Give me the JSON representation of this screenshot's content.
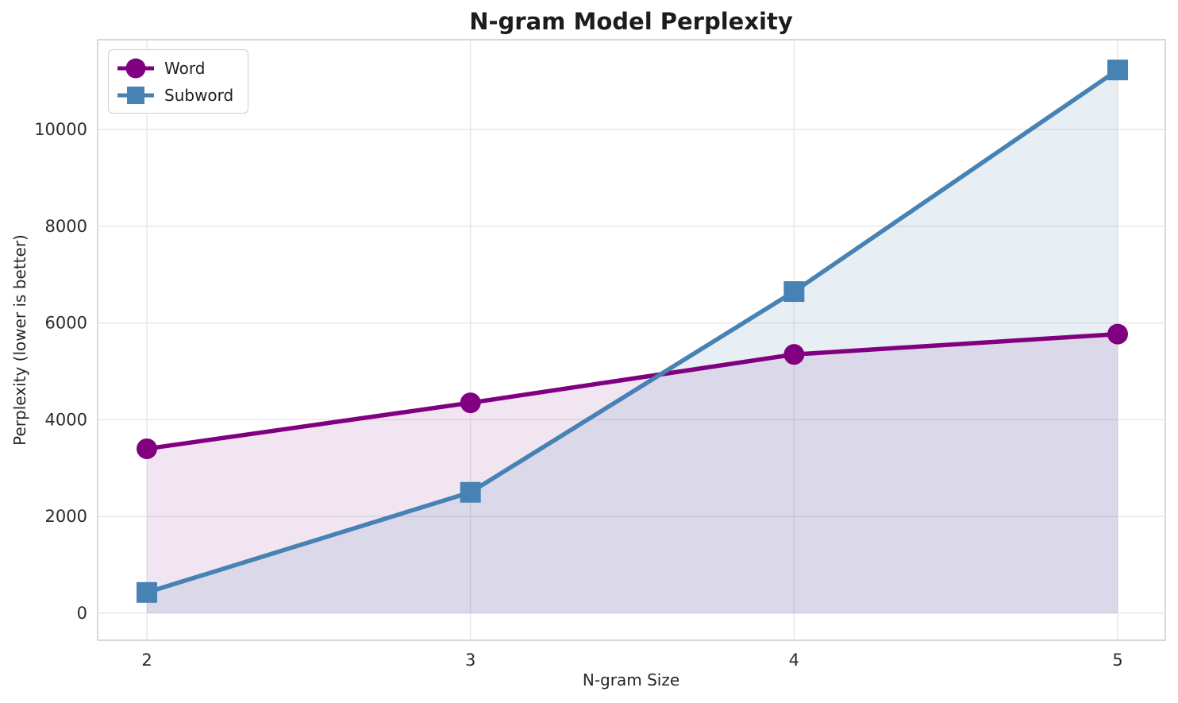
{
  "chart_data": {
    "type": "line",
    "title": "N-gram Model Perplexity",
    "xlabel": "N-gram Size",
    "ylabel": "Perplexity (lower is better)",
    "x": [
      2,
      3,
      4,
      5
    ],
    "x_tick_labels": [
      "2",
      "3",
      "4",
      "5"
    ],
    "y_ticks": [
      0,
      2000,
      4000,
      6000,
      8000,
      10000
    ],
    "y_tick_labels": [
      "0",
      "2000",
      "4000",
      "6000",
      "8000",
      "10000"
    ],
    "ylim": [
      -560,
      11860
    ],
    "grid": true,
    "legend_position": "upper-left",
    "area_fill_to_zero": true,
    "series": [
      {
        "name": "Word",
        "marker": "circle",
        "color": "#800080",
        "fill_color": "rgba(128,0,128,0.10)",
        "values": [
          3400,
          4350,
          5350,
          5770
        ]
      },
      {
        "name": "Subword",
        "marker": "square",
        "color": "#4682B4",
        "fill_color": "rgba(70,130,180,0.13)",
        "values": [
          430,
          2500,
          6650,
          11230
        ]
      }
    ]
  },
  "colors": {
    "grid": "#e8e8e8",
    "spine": "#cccccc",
    "tick_text": "#2d2d2d",
    "title_text": "#1c1c1c"
  }
}
